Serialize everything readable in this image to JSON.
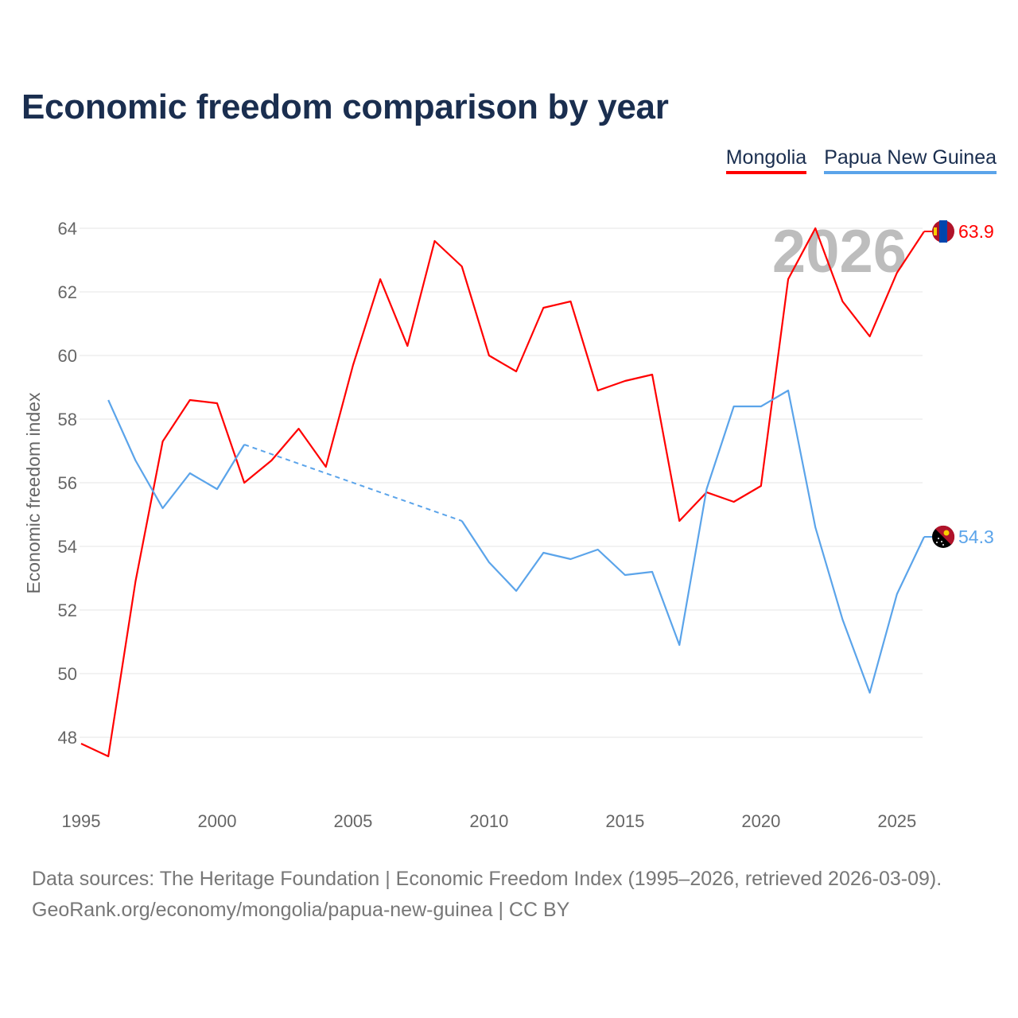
{
  "title": "Economic freedom comparison by year",
  "footer": {
    "line1": "Data sources: The Heritage Foundation | Economic Freedom Index (1995–2026, retrieved 2026-03-09).",
    "line2": "GeoRank.org/economy/mongolia/papua-new-guinea | CC BY"
  },
  "chart_data": {
    "type": "line",
    "title": "Economic freedom comparison by year",
    "xlabel": "",
    "ylabel": "Economic freedom index",
    "xlim": [
      1995,
      2026
    ],
    "ylim": [
      46.5,
      64.5
    ],
    "x_ticks": [
      "1995",
      "2000",
      "2005",
      "2010",
      "2015",
      "2020",
      "2025"
    ],
    "y_ticks": [
      "48",
      "50",
      "52",
      "54",
      "56",
      "58",
      "60",
      "62",
      "64"
    ],
    "year_watermark": "2026",
    "grid": true,
    "legend_placement": "top-right",
    "x": [
      1995,
      1996,
      1997,
      1998,
      1999,
      2000,
      2001,
      2002,
      2003,
      2004,
      2005,
      2006,
      2007,
      2008,
      2009,
      2010,
      2011,
      2012,
      2013,
      2014,
      2015,
      2016,
      2017,
      2018,
      2019,
      2020,
      2021,
      2022,
      2023,
      2024,
      2025,
      2026
    ],
    "series": [
      {
        "name": "Mongolia",
        "color": "#ff0000",
        "end_label": "63.9",
        "flag": "mongolia-flag",
        "values": [
          47.8,
          47.4,
          52.9,
          57.3,
          58.6,
          58.5,
          56.0,
          56.7,
          57.7,
          56.5,
          59.7,
          62.4,
          60.3,
          63.6,
          62.8,
          60.0,
          59.5,
          61.5,
          61.7,
          58.9,
          59.2,
          59.4,
          54.8,
          55.7,
          55.4,
          55.9,
          62.4,
          64.0,
          61.7,
          60.6,
          62.6,
          63.9
        ]
      },
      {
        "name": "Papua New Guinea",
        "color": "#5ba4ea",
        "end_label": "54.3",
        "flag": "papua-new-guinea-flag",
        "values": [
          null,
          58.6,
          56.7,
          55.2,
          56.3,
          55.8,
          57.2,
          null,
          null,
          null,
          null,
          null,
          null,
          null,
          54.8,
          53.5,
          52.6,
          53.8,
          53.6,
          53.9,
          53.1,
          53.2,
          50.9,
          55.8,
          58.4,
          58.4,
          58.9,
          54.6,
          51.7,
          49.4,
          52.5,
          54.3
        ]
      }
    ]
  }
}
